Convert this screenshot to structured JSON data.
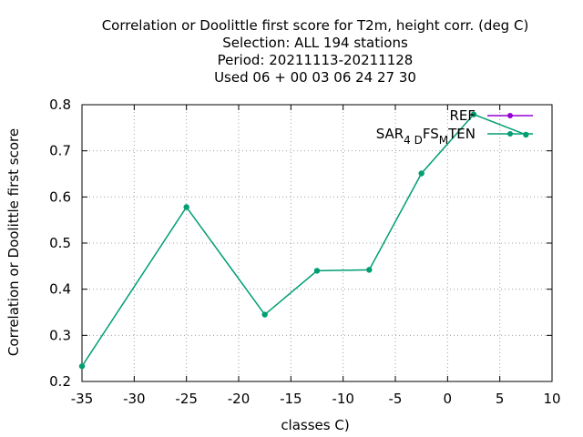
{
  "chart_data": {
    "type": "line",
    "title_lines": [
      "Correlation or Doolittle first score  for T2m, height corr. (deg C)",
      "Selection: ALL    194 stations",
      "Period: 20211113-20211128",
      "Used  06 + 00 03 06 24 27 30"
    ],
    "xlabel": "classes C)",
    "ylabel": "Correlation or Doolittle first score",
    "xlim": [
      -35,
      10
    ],
    "ylim": [
      0.2,
      0.8
    ],
    "xticks": [
      "-35",
      "-30",
      "-25",
      "-20",
      "-15",
      "-10",
      "-5",
      "0",
      "5",
      "10"
    ],
    "yticks": [
      "0.2",
      "0.3",
      "0.4",
      "0.5",
      "0.6",
      "0.7",
      "0.8"
    ],
    "grid": true,
    "legend_position": "top-right",
    "series": [
      {
        "name": "REF",
        "legend_label": "REF",
        "color": "#9400d3",
        "x": [],
        "y": []
      },
      {
        "name": "SAR4DFSMTEN",
        "legend_main": "SAR",
        "legend_sub1": "4 D",
        "legend_mid": "FS",
        "legend_sub2": "M",
        "legend_end": "TEN",
        "color": "#009e73",
        "x": [
          -35,
          -25,
          -17.5,
          -12.5,
          -7.5,
          -2.5,
          2.5,
          7.5
        ],
        "y": [
          0.233,
          0.578,
          0.345,
          0.44,
          0.442,
          0.651,
          0.779,
          0.735
        ]
      }
    ]
  }
}
